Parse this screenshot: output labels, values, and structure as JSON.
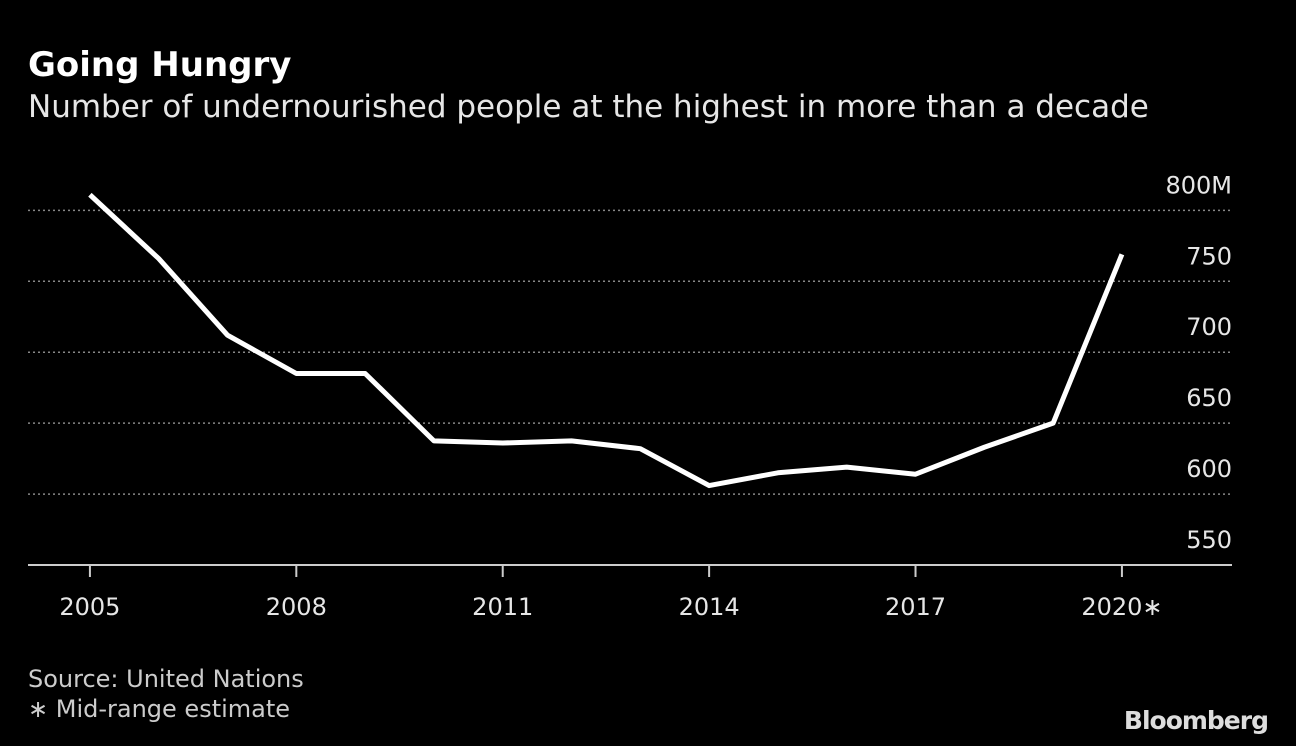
{
  "chart_data": {
    "type": "line",
    "title": "Going Hungry",
    "subtitle": "Number of undernourished people at the highest in more than a decade",
    "x": [
      2005,
      2006,
      2007,
      2008,
      2009,
      2010,
      2011,
      2012,
      2013,
      2014,
      2015,
      2016,
      2017,
      2018,
      2019,
      2020
    ],
    "series": [
      {
        "color": "#ffffff",
        "values": [
          811,
          766,
          712,
          685,
          685,
          637.5,
          636,
          637.5,
          632,
          606,
          615,
          619,
          614,
          633,
          650,
          769
        ]
      }
    ],
    "xlim": [
      2004.1,
      2021.6
    ],
    "xticks": [
      2005,
      2008,
      2011,
      2014,
      2017,
      {
        "value": 2020,
        "label": "2020∗"
      }
    ],
    "ylim": [
      550,
      820
    ],
    "yticks": [
      550,
      600,
      650,
      700,
      750,
      {
        "value": 800,
        "label": "800M"
      }
    ],
    "grid": true,
    "source": "Source: United Nations",
    "note": "∗ Mid-range estimate",
    "brand": "Bloomberg"
  }
}
